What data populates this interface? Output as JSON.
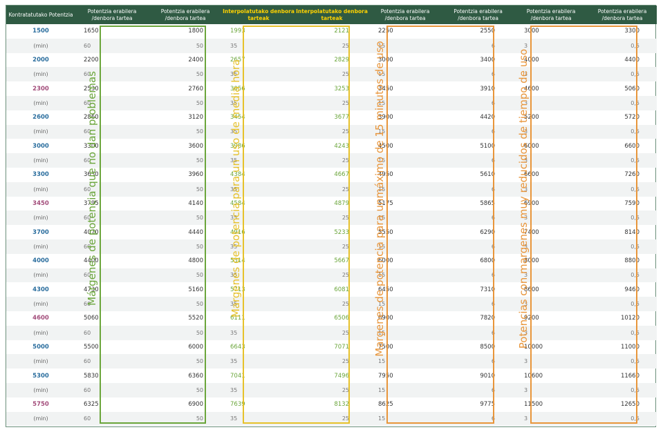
{
  "colors": {
    "header_bg": "#2f5a43",
    "header_highlight": "#ffd200",
    "green": "#6aa53a",
    "yellow": "#e6c12a",
    "orange": "#e8953a",
    "blue_power": "#2b6e9e",
    "purple_power": "#a34d7b"
  },
  "headers": [
    "Kontratatutako Potentzia",
    "Potentzia erabilera /denbora tartea",
    "Potentzia erabilera /denbora tartea",
    "Interpolatutako denbora tarteak",
    "Interpolatutako denbora tarteak",
    "Potentzia erabilera /denbora tartea",
    "Potentzia erabilera /denbora tartea",
    "Potentzia erabilera /denbora tartea",
    "Potentzia erabilera /denbora tartea"
  ],
  "rows": [
    {
      "power": "1500",
      "power_color": "#2b6e9e",
      "values": [
        "1650",
        "1800",
        "1993",
        "2121",
        "2250",
        "2550",
        "3000",
        "3300"
      ]
    },
    {
      "power": "2000",
      "power_color": "#2b6e9e",
      "values": [
        "2200",
        "2400",
        "2657",
        "2829",
        "3000",
        "3400",
        "4000",
        "4400"
      ]
    },
    {
      "power": "2300",
      "power_color": "#a34d7b",
      "values": [
        "2530",
        "2760",
        "3056",
        "3253",
        "3450",
        "3910",
        "4600",
        "5060"
      ]
    },
    {
      "power": "2600",
      "power_color": "#2b6e9e",
      "values": [
        "2860",
        "3120",
        "3454",
        "3677",
        "3900",
        "4420",
        "5200",
        "5720"
      ]
    },
    {
      "power": "3000",
      "power_color": "#2b6e9e",
      "values": [
        "3300",
        "3600",
        "3986",
        "4243",
        "4500",
        "5100",
        "6000",
        "6600"
      ]
    },
    {
      "power": "3300",
      "power_color": "#2b6e9e",
      "values": [
        "3630",
        "3960",
        "4384",
        "4667",
        "4950",
        "5610",
        "6600",
        "7260"
      ]
    },
    {
      "power": "3450",
      "power_color": "#a34d7b",
      "values": [
        "3795",
        "4140",
        "4584",
        "4879",
        "5175",
        "5865",
        "6900",
        "7590"
      ]
    },
    {
      "power": "3700",
      "power_color": "#2b6e9e",
      "values": [
        "4070",
        "4440",
        "4916",
        "5233",
        "5550",
        "6290",
        "7400",
        "8140"
      ]
    },
    {
      "power": "4000",
      "power_color": "#2b6e9e",
      "values": [
        "4400",
        "4800",
        "5314",
        "5667",
        "6000",
        "6800",
        "8000",
        "8800"
      ]
    },
    {
      "power": "4300",
      "power_color": "#2b6e9e",
      "values": [
        "4730",
        "5160",
        "5713",
        "6081",
        "6450",
        "7310",
        "8600",
        "9460"
      ]
    },
    {
      "power": "4600",
      "power_color": "#a34d7b",
      "values": [
        "5060",
        "5520",
        "6111",
        "6506",
        "6900",
        "7820",
        "9200",
        "10120"
      ]
    },
    {
      "power": "5000",
      "power_color": "#2b6e9e",
      "values": [
        "5500",
        "6000",
        "6643",
        "7071",
        "7500",
        "8500",
        "10000",
        "11000"
      ]
    },
    {
      "power": "5300",
      "power_color": "#2b6e9e",
      "values": [
        "5830",
        "6360",
        "7041",
        "7496",
        "7950",
        "9010",
        "10600",
        "11660"
      ]
    },
    {
      "power": "5750",
      "power_color": "#a34d7b",
      "values": [
        "6325",
        "6900",
        "7639",
        "8132",
        "8625",
        "9775",
        "11500",
        "12650"
      ]
    }
  ],
  "min_row": {
    "label": "(min)",
    "values": [
      "60",
      "50",
      "35",
      "25",
      "15",
      "6",
      "3",
      "0,5"
    ]
  },
  "labels": {
    "green": "Márgenes de potencia que no dan problemas",
    "yellow": "Margenes de potencia para un uso de media hora",
    "orange1": "Margenes de potencia para unmáximo de 15 minutos de uso",
    "orange2": "Potencias con margenes muy reducidos de tiempo de uso"
  }
}
